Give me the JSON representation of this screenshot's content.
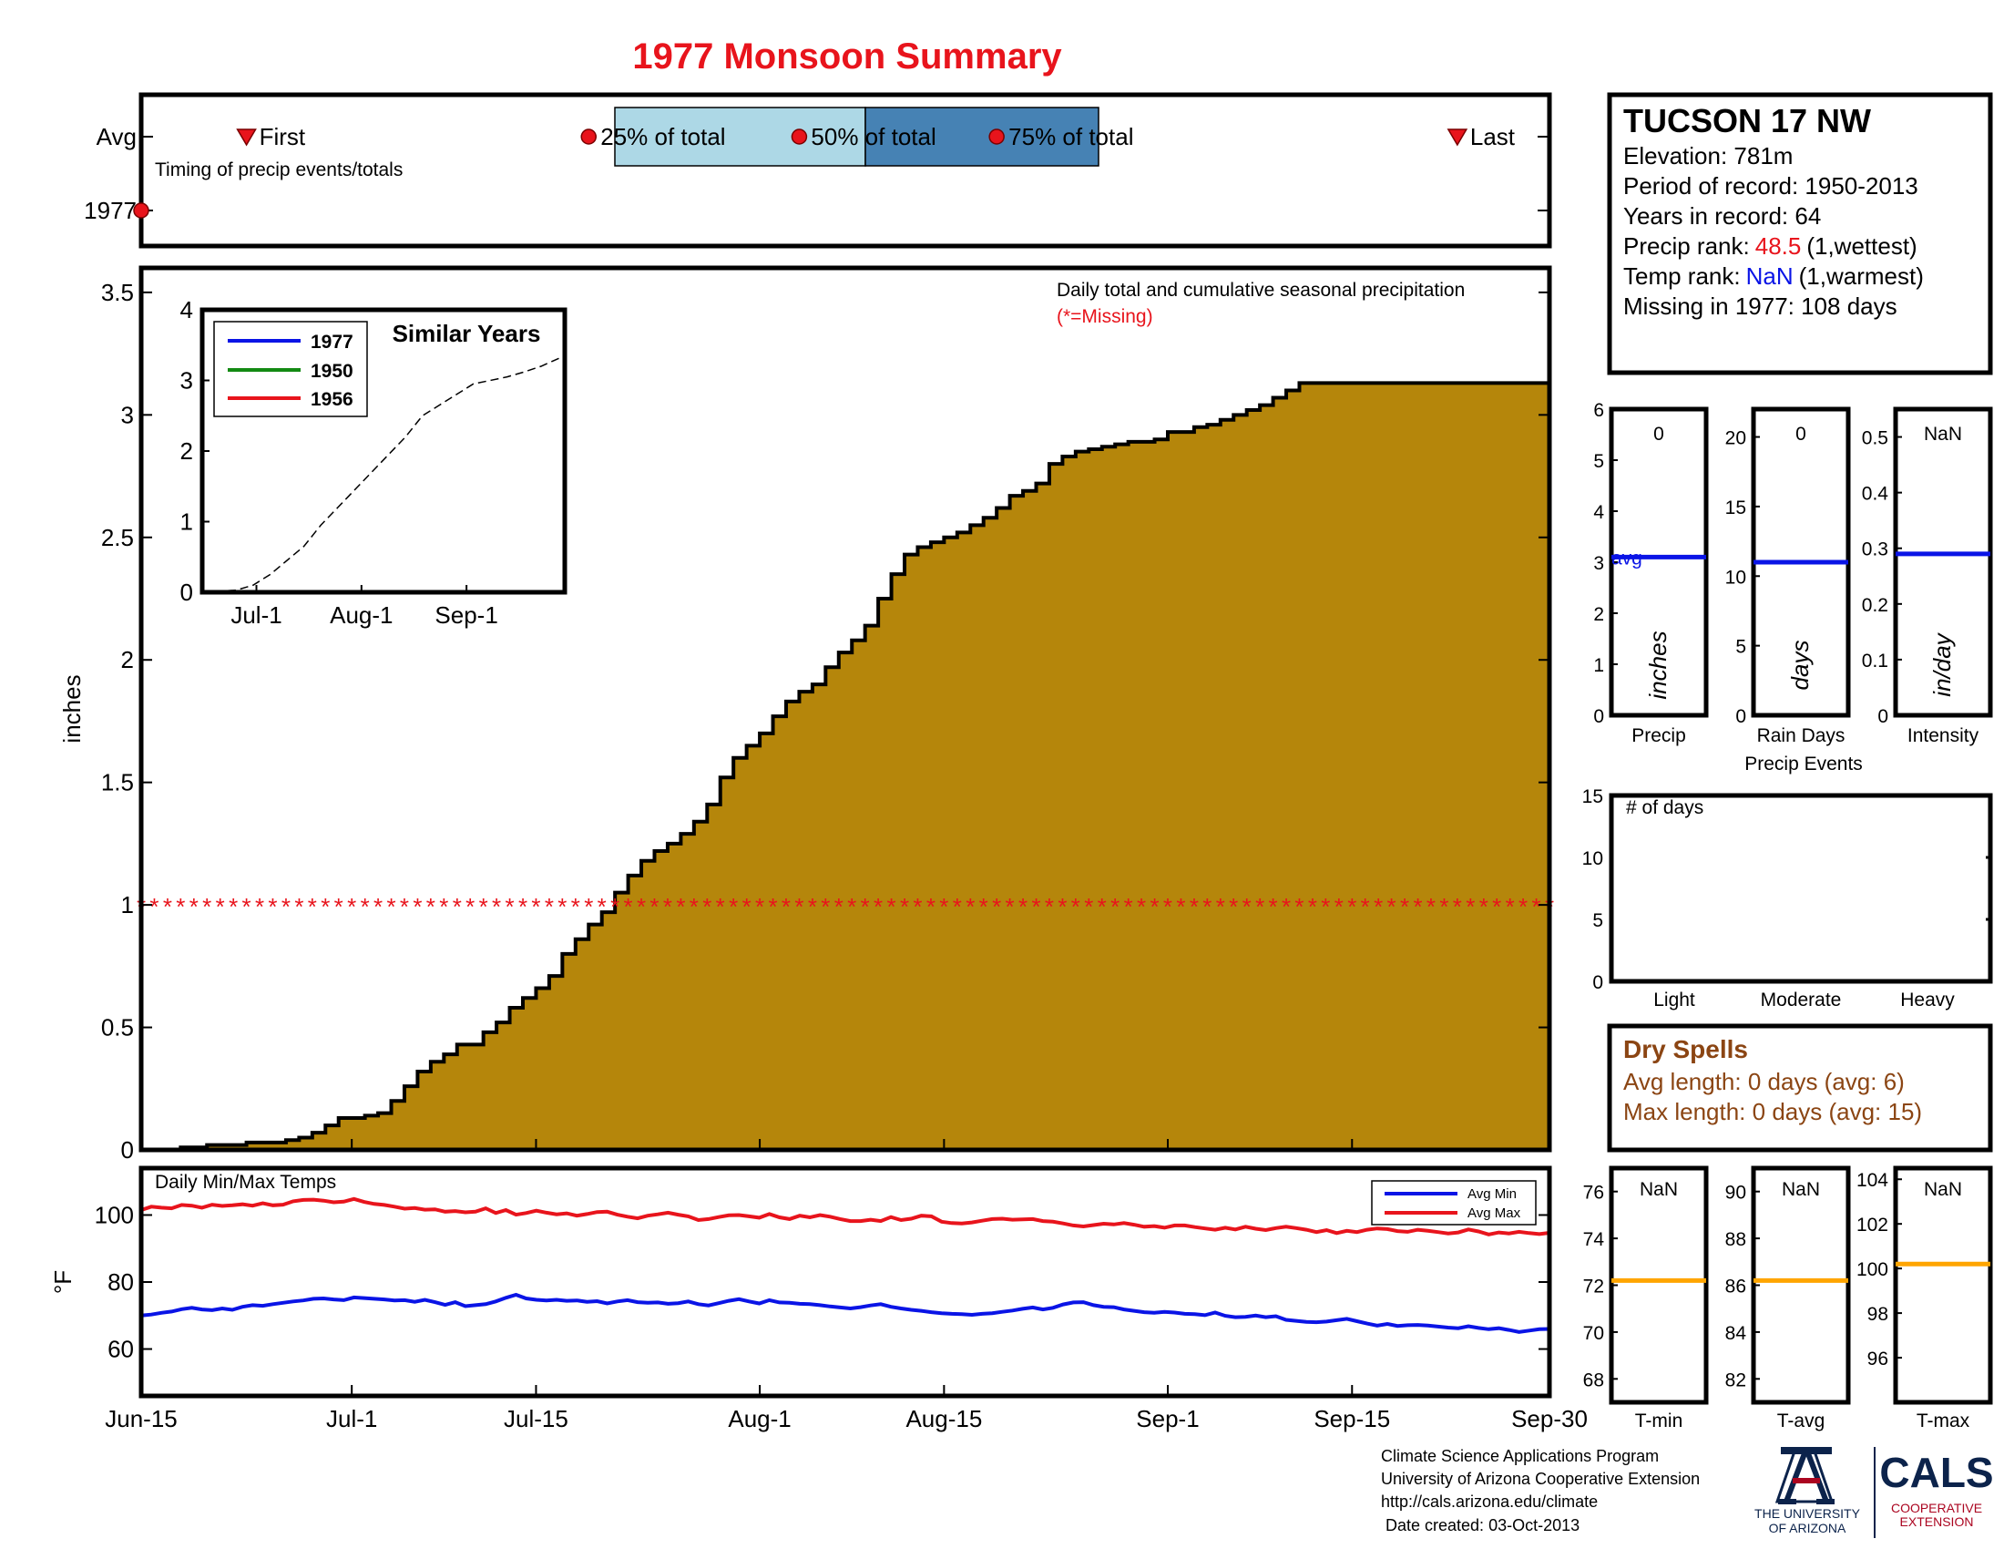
{
  "title": "1977 Monsoon Summary",
  "colors": {
    "title": "#e8141c",
    "fill": "#b5860b",
    "missing": "#e8141c",
    "q25": "#add8e6",
    "q50": "#4682b4",
    "blue": "#0a14e6",
    "green": "#138a13",
    "red": "#e8141c",
    "orange": "#ffa500",
    "brown": "#8b4513"
  },
  "timing": {
    "avg_label": "Avg",
    "year_label": "1977",
    "caption": "Timing of precip events/totals",
    "first_label": "First",
    "last_label": "Last",
    "q25_label": "25% of total",
    "q50_label": "50% of total",
    "q75_label": "75% of total",
    "first_day": 8,
    "last_day": 100,
    "q25_day": 34,
    "q50_day": 50,
    "q75_day": 65,
    "year_marker_day": -1
  },
  "station": {
    "name": "TUCSON 17 NW",
    "elevation": "Elevation: 781m",
    "period": "Period of record: 1950-2013",
    "years": "Years in record: 64",
    "precip_rank_label": "Precip rank:",
    "precip_rank_value": "48.5",
    "precip_rank_note": "(1,wettest)",
    "temp_rank_label": "Temp rank:",
    "temp_rank_value": "NaN",
    "temp_rank_note": "(1,warmest)",
    "missing": "Missing in 1977: 108 days"
  },
  "main_chart": {
    "note": "Daily total and cumulative seasonal precipitation",
    "missing_note": "(*=Missing)",
    "ylabel": "inches",
    "yticks": [
      "0",
      "0.5",
      "1",
      "1.5",
      "2",
      "2.5",
      "3",
      "3.5"
    ],
    "xticks": [
      "Jun-15",
      "Jul-1",
      "Jul-15",
      "Aug-1",
      "Aug-15",
      "Sep-1",
      "Sep-15",
      "Sep-30"
    ]
  },
  "chart_data": {
    "type": "area",
    "x_unit": "day of season (0 = Jun-15, 107 = Sep-30)",
    "xlim": [
      0,
      107
    ],
    "ylim": [
      0,
      3.6
    ],
    "missing_marker_value": 1,
    "cumulative_precip": [
      [
        0,
        0
      ],
      [
        3,
        0.01
      ],
      [
        5,
        0.02
      ],
      [
        8,
        0.03
      ],
      [
        11,
        0.04
      ],
      [
        12,
        0.05
      ],
      [
        13,
        0.07
      ],
      [
        14,
        0.1
      ],
      [
        15,
        0.13
      ],
      [
        17,
        0.14
      ],
      [
        18,
        0.15
      ],
      [
        19,
        0.2
      ],
      [
        20,
        0.26
      ],
      [
        21,
        0.32
      ],
      [
        22,
        0.36
      ],
      [
        23,
        0.39
      ],
      [
        24,
        0.43
      ],
      [
        26,
        0.48
      ],
      [
        27,
        0.52
      ],
      [
        28,
        0.58
      ],
      [
        29,
        0.62
      ],
      [
        30,
        0.66
      ],
      [
        31,
        0.71
      ],
      [
        32,
        0.8
      ],
      [
        33,
        0.86
      ],
      [
        34,
        0.92
      ],
      [
        35,
        0.97
      ],
      [
        36,
        1.05
      ],
      [
        37,
        1.12
      ],
      [
        38,
        1.18
      ],
      [
        39,
        1.22
      ],
      [
        40,
        1.25
      ],
      [
        41,
        1.29
      ],
      [
        42,
        1.34
      ],
      [
        43,
        1.41
      ],
      [
        44,
        1.52
      ],
      [
        45,
        1.6
      ],
      [
        46,
        1.65
      ],
      [
        47,
        1.7
      ],
      [
        48,
        1.77
      ],
      [
        49,
        1.83
      ],
      [
        50,
        1.87
      ],
      [
        51,
        1.9
      ],
      [
        52,
        1.97
      ],
      [
        53,
        2.03
      ],
      [
        54,
        2.08
      ],
      [
        55,
        2.14
      ],
      [
        56,
        2.25
      ],
      [
        57,
        2.35
      ],
      [
        58,
        2.43
      ],
      [
        59,
        2.46
      ],
      [
        60,
        2.48
      ],
      [
        61,
        2.5
      ],
      [
        62,
        2.52
      ],
      [
        63,
        2.55
      ],
      [
        64,
        2.58
      ],
      [
        65,
        2.62
      ],
      [
        66,
        2.67
      ],
      [
        67,
        2.69
      ],
      [
        68,
        2.72
      ],
      [
        69,
        2.8
      ],
      [
        70,
        2.83
      ],
      [
        71,
        2.85
      ],
      [
        72,
        2.86
      ],
      [
        73,
        2.87
      ],
      [
        74,
        2.88
      ],
      [
        75,
        2.89
      ],
      [
        77,
        2.9
      ],
      [
        78,
        2.93
      ],
      [
        80,
        2.95
      ],
      [
        81,
        2.96
      ],
      [
        82,
        2.98
      ],
      [
        83,
        3.0
      ],
      [
        84,
        3.02
      ],
      [
        85,
        3.04
      ],
      [
        86,
        3.07
      ],
      [
        87,
        3.1
      ],
      [
        88,
        3.13
      ]
    ],
    "inset": {
      "title": "Similar Years",
      "series": [
        {
          "name": "1977"
        },
        {
          "name": "1950"
        },
        {
          "name": "1956"
        }
      ],
      "yticks": [
        "0",
        "1",
        "2",
        "3",
        "4"
      ],
      "xticks": [
        "Jul-1",
        "Aug-1",
        "Sep-1"
      ],
      "ylim": [
        0,
        4
      ],
      "xlim": [
        0,
        107
      ],
      "avg_curve": [
        [
          0,
          0
        ],
        [
          10,
          0.03
        ],
        [
          15,
          0.1
        ],
        [
          20,
          0.25
        ],
        [
          25,
          0.45
        ],
        [
          30,
          0.65
        ],
        [
          35,
          0.95
        ],
        [
          40,
          1.2
        ],
        [
          45,
          1.45
        ],
        [
          50,
          1.7
        ],
        [
          55,
          1.95
        ],
        [
          60,
          2.2
        ],
        [
          65,
          2.5
        ],
        [
          70,
          2.65
        ],
        [
          75,
          2.8
        ],
        [
          80,
          2.95
        ],
        [
          85,
          3.0
        ],
        [
          90,
          3.05
        ],
        [
          95,
          3.12
        ],
        [
          100,
          3.2
        ],
        [
          107,
          3.35
        ]
      ]
    },
    "temps": {
      "title": "Daily Min/Max Temps",
      "ylabel": "°F",
      "yticks": [
        "60",
        "80",
        "100"
      ],
      "ylim": [
        46,
        114
      ],
      "avg_min_label": "Avg Min",
      "avg_max_label": "Avg Max",
      "avg_max": [
        101.5,
        102.5,
        102.2,
        102.0,
        103.0,
        102.8,
        102.2,
        103.1,
        102.7,
        102.9,
        103.2,
        102.8,
        103.5,
        102.9,
        103.1,
        104.1,
        104.5,
        104.6,
        104.3,
        103.8,
        104.0,
        104.8,
        103.9,
        103.3,
        103.0,
        102.5,
        101.9,
        102.1,
        101.6,
        101.7,
        101.0,
        101.2,
        100.8,
        101.0,
        102.0,
        100.6,
        101.5,
        100.1,
        100.6,
        101.3,
        100.7,
        100.2,
        100.5,
        99.8,
        100.3,
        100.9,
        101.0,
        100.1,
        99.5,
        99.0,
        99.8,
        100.2,
        100.7,
        100.1,
        99.6,
        98.5,
        98.8,
        99.4,
        99.9,
        100.0,
        99.6,
        99.2,
        100.3,
        99.3,
        98.8,
        99.8,
        99.3,
        100.0,
        99.5,
        98.8,
        98.2,
        98.2,
        98.6,
        98.2,
        99.4,
        98.5,
        98.9,
        99.8,
        99.6,
        98.0,
        97.6,
        97.5,
        97.8,
        98.3,
        98.8,
        98.9,
        98.6,
        98.7,
        98.8,
        98.2,
        98.0,
        97.5,
        96.9,
        96.6,
        97.0,
        97.4,
        97.2,
        97.6,
        97.1,
        96.5,
        96.7,
        96.2,
        96.9,
        96.9,
        96.4,
        96.0,
        95.6,
        96.2,
        95.7,
        96.5,
        95.9,
        95.5,
        96.1,
        96.5,
        96.1,
        95.6,
        94.9,
        95.5,
        94.6,
        95.3,
        94.9,
        95.6,
        96.0,
        95.8,
        95.2,
        95.0,
        95.6,
        95.3,
        94.9,
        94.5,
        94.8,
        95.7,
        95.1,
        94.2,
        94.8,
        94.5,
        95.0,
        94.6,
        94.3,
        94.7
      ],
      "avg_min": [
        70.0,
        70.3,
        70.8,
        71.2,
        71.9,
        72.3,
        71.8,
        71.6,
        72.1,
        71.7,
        72.6,
        73.1,
        72.9,
        73.4,
        73.8,
        74.2,
        74.5,
        75.0,
        75.1,
        74.8,
        74.6,
        75.4,
        75.2,
        75.0,
        74.8,
        74.5,
        74.6,
        74.1,
        74.7,
        74.0,
        73.2,
        74.0,
        72.8,
        73.1,
        73.4,
        74.2,
        75.3,
        76.2,
        75.1,
        74.7,
        74.5,
        74.7,
        74.4,
        74.5,
        74.1,
        74.3,
        73.6,
        74.2,
        74.6,
        74.0,
        73.8,
        73.9,
        73.5,
        73.7,
        74.2,
        73.4,
        73.0,
        73.7,
        74.4,
        74.9,
        74.2,
        73.6,
        74.6,
        73.9,
        73.8,
        73.5,
        73.4,
        73.1,
        72.7,
        72.4,
        72.1,
        72.5,
        73.0,
        73.4,
        72.6,
        72.1,
        71.7,
        71.4,
        71.0,
        70.7,
        70.5,
        70.4,
        70.2,
        70.5,
        70.7,
        71.1,
        71.5,
        72.0,
        72.4,
        71.8,
        72.3,
        73.3,
        73.9,
        74.0,
        73.1,
        72.6,
        72.5,
        71.8,
        71.4,
        71.0,
        70.8,
        71.1,
        70.9,
        70.5,
        70.4,
        70.1,
        70.9,
        69.9,
        69.5,
        69.6,
        70.0,
        69.5,
        69.8,
        68.7,
        68.4,
        68.1,
        68.0,
        68.2,
        68.6,
        69.0,
        68.3,
        67.6,
        67.0,
        67.5,
        66.9,
        67.1,
        67.2,
        67.0,
        66.7,
        66.4,
        66.2,
        66.8,
        66.3,
        65.9,
        66.2,
        65.7,
        65.1,
        65.5,
        65.9,
        66.0
      ]
    },
    "precip_events": [
      {
        "label": "Precip",
        "unit": "inches",
        "value": "0",
        "yticks": [
          "0",
          "1",
          "2",
          "3",
          "4",
          "5",
          "6"
        ],
        "ylim": [
          0,
          6
        ],
        "avg": 3.1,
        "avg_label": "avg"
      },
      {
        "label": "Rain Days",
        "unit": "days",
        "value": "0",
        "yticks": [
          "0",
          "5",
          "10",
          "15",
          "20"
        ],
        "ylim": [
          0,
          22
        ],
        "avg": 11
      },
      {
        "label": "Intensity",
        "unit": "in/day",
        "value": "NaN",
        "yticks": [
          "0",
          "0.1",
          "0.2",
          "0.3",
          "0.4",
          "0.5"
        ],
        "ylim": [
          0,
          0.55
        ],
        "avg": 0.29
      }
    ],
    "precip_events_caption": "Precip Events",
    "days_panel": {
      "title": "# of days",
      "yticks": [
        "0",
        "5",
        "10",
        "15"
      ],
      "ylim": [
        0,
        15
      ],
      "categories": [
        "Light",
        "Moderate",
        "Heavy"
      ],
      "values": [
        0,
        0,
        0
      ]
    },
    "temp_panels": [
      {
        "label": "T-min",
        "value": "NaN",
        "yticks": [
          "68",
          "70",
          "72",
          "74",
          "76"
        ],
        "ylim": [
          67,
          77
        ],
        "avg": 72.2
      },
      {
        "label": "T-avg",
        "value": "NaN",
        "yticks": [
          "82",
          "84",
          "86",
          "88",
          "90"
        ],
        "ylim": [
          81,
          91
        ],
        "avg": 86.2
      },
      {
        "label": "T-max",
        "value": "NaN",
        "yticks": [
          "96",
          "98",
          "100",
          "102",
          "104"
        ],
        "ylim": [
          94,
          104.5
        ],
        "avg": 100.2
      }
    ]
  },
  "dry_spells": {
    "title": "Dry Spells",
    "avg_length": "Avg length: 0 days (avg: 6)",
    "max_length": "Max length: 0 days (avg: 15)"
  },
  "footer": {
    "line1": "Climate Science Applications Program",
    "line2": "University of Arizona Cooperative Extension",
    "line3": "http://cals.arizona.edu/climate",
    "line4": " Date created: 03-Oct-2013",
    "ua_logo_text1": "THE UNIVERSITY",
    "ua_logo_text2": "OF ARIZONA",
    "cals_logo": "CALS",
    "cals_sub1": "COOPERATIVE",
    "cals_sub2": "EXTENSION"
  }
}
